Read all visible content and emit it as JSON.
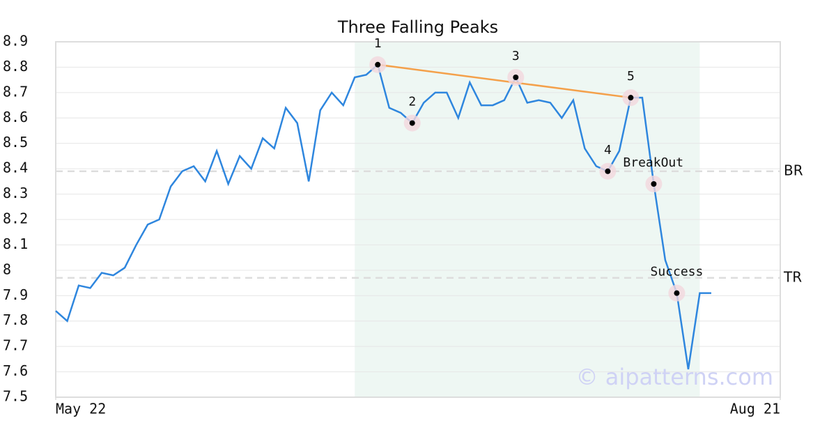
{
  "chart_data": {
    "type": "line",
    "title": "Three Falling Peaks",
    "values": [
      7.84,
      7.8,
      7.94,
      7.93,
      7.99,
      7.98,
      8.01,
      8.1,
      8.18,
      8.2,
      8.33,
      8.39,
      8.41,
      8.35,
      8.47,
      8.34,
      8.45,
      8.4,
      8.52,
      8.48,
      8.64,
      8.58,
      8.35,
      8.63,
      8.7,
      8.65,
      8.76,
      8.77,
      8.81,
      8.64,
      8.62,
      8.58,
      8.66,
      8.7,
      8.7,
      8.6,
      8.74,
      8.65,
      8.65,
      8.67,
      8.76,
      8.66,
      8.67,
      8.66,
      8.6,
      8.67,
      8.48,
      8.41,
      8.39,
      8.47,
      8.68,
      8.68,
      8.34,
      8.04,
      7.91,
      7.61,
      7.91,
      7.91
    ],
    "color": "#2e86de",
    "xlim": [
      0,
      63
    ],
    "xticks": [
      {
        "value": 0,
        "label": "May 22"
      },
      {
        "value": 63,
        "label": "Aug 21"
      }
    ],
    "ylim": [
      7.5,
      8.9
    ],
    "yticks": [
      7.5,
      7.6,
      7.7,
      7.8,
      7.9,
      8.0,
      8.1,
      8.2,
      8.3,
      8.4,
      8.5,
      8.6,
      8.7,
      8.8,
      8.9
    ],
    "grid": true,
    "shaded_range": [
      26,
      56
    ],
    "pattern_points": [
      {
        "label": "1",
        "index": 28,
        "value": 8.81
      },
      {
        "label": "2",
        "index": 31,
        "value": 8.58
      },
      {
        "label": "3",
        "index": 40,
        "value": 8.76
      },
      {
        "label": "4",
        "index": 48,
        "value": 8.39
      },
      {
        "label": "5",
        "index": 50,
        "value": 8.68
      },
      {
        "label": "BreakOut",
        "index": 52,
        "value": 8.34
      },
      {
        "label": "Success",
        "index": 54,
        "value": 7.91
      }
    ],
    "trend_line": {
      "from": 0,
      "to": 4,
      "color": "#f4a04a"
    },
    "levels": [
      {
        "label": "BR",
        "value": 8.39
      },
      {
        "label": "TR",
        "value": 7.97
      }
    ],
    "watermark": "© aipatterns.com"
  }
}
